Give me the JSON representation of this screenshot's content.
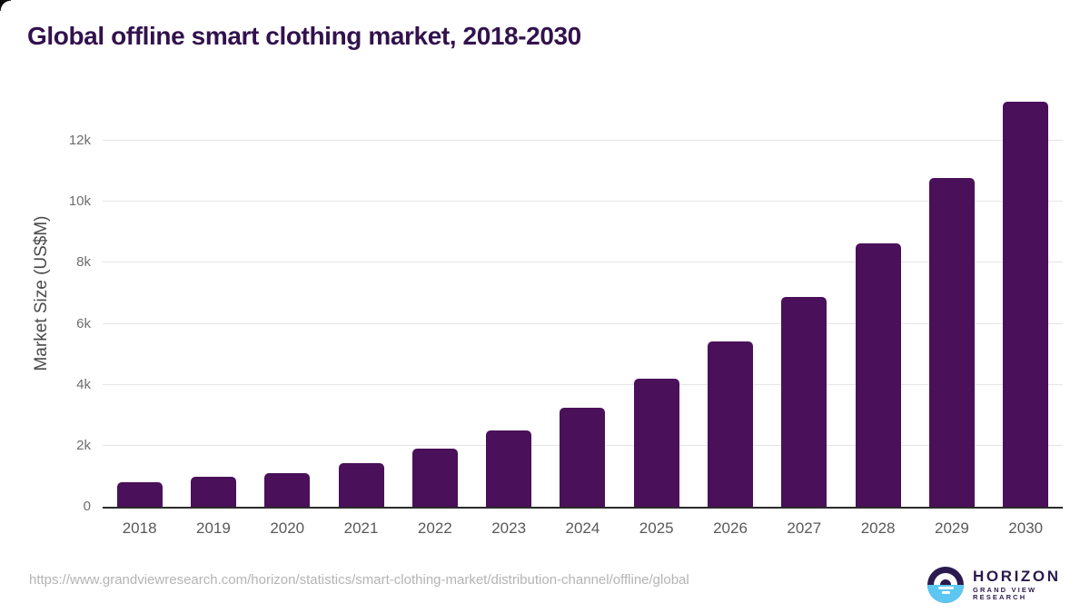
{
  "title": {
    "text": "Global offline smart clothing market, 2018-2030"
  },
  "chart_data": {
    "type": "bar",
    "title": "Global offline smart clothing market, 2018-2030",
    "categories": [
      "2018",
      "2019",
      "2020",
      "2021",
      "2022",
      "2023",
      "2024",
      "2025",
      "2026",
      "2027",
      "2028",
      "2029",
      "2030"
    ],
    "values": [
      790,
      970,
      1100,
      1430,
      1900,
      2490,
      3240,
      4200,
      5420,
      6890,
      8650,
      10770,
      13300
    ],
    "xlabel": "",
    "ylabel": "Market Size (US$M)",
    "ylim": [
      0,
      14000
    ],
    "yticks": [
      {
        "value": 0,
        "label": "0"
      },
      {
        "value": 2000,
        "label": "2k"
      },
      {
        "value": 4000,
        "label": "4k"
      },
      {
        "value": 6000,
        "label": "6k"
      },
      {
        "value": 8000,
        "label": "8k"
      },
      {
        "value": 10000,
        "label": "10k"
      },
      {
        "value": 12000,
        "label": "12k"
      }
    ],
    "grid": "horizontal",
    "legend": "none",
    "bar_color": "#4a1059",
    "title_color": "#32124d"
  },
  "footer": {
    "source_url": "https://www.grandviewresearch.com/horizon/statistics/smart-clothing-market/distribution-channel/offline/global",
    "logo": {
      "brand": "HORIZON",
      "sub_brand": "GRAND VIEW RESEARCH",
      "icon": "horizon-sunset-icon",
      "navy_color": "#2b1a4e",
      "blue_color": "#5cc7f2"
    }
  }
}
